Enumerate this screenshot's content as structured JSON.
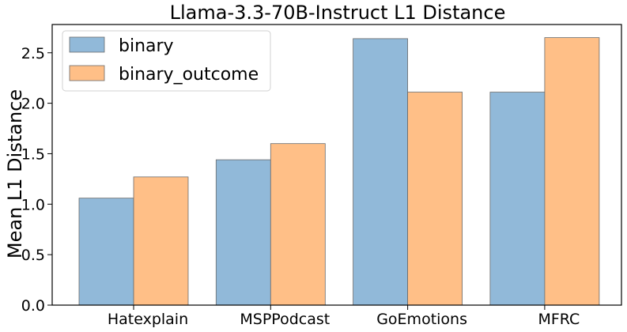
{
  "chart_data": {
    "type": "bar",
    "title": "Llama-3.3-70B-Instruct L1 Distance",
    "xlabel": "",
    "ylabel": "Mean L1 Distance",
    "categories": [
      "Hatexplain",
      "MSPPodcast",
      "GoEmotions",
      "MFRC"
    ],
    "series": [
      {
        "name": "binary",
        "values": [
          1.06,
          1.44,
          2.64,
          2.11
        ],
        "color": "#91b9d9"
      },
      {
        "name": "binary_outcome",
        "values": [
          1.27,
          1.6,
          2.11,
          2.65
        ],
        "color": "#ffbf87"
      }
    ],
    "ylim": [
      0,
      2.78
    ],
    "yticks": [
      "0.0",
      "0.5",
      "1.0",
      "1.5",
      "2.0",
      "2.5"
    ],
    "grid": false,
    "legend_position": "top-left"
  }
}
